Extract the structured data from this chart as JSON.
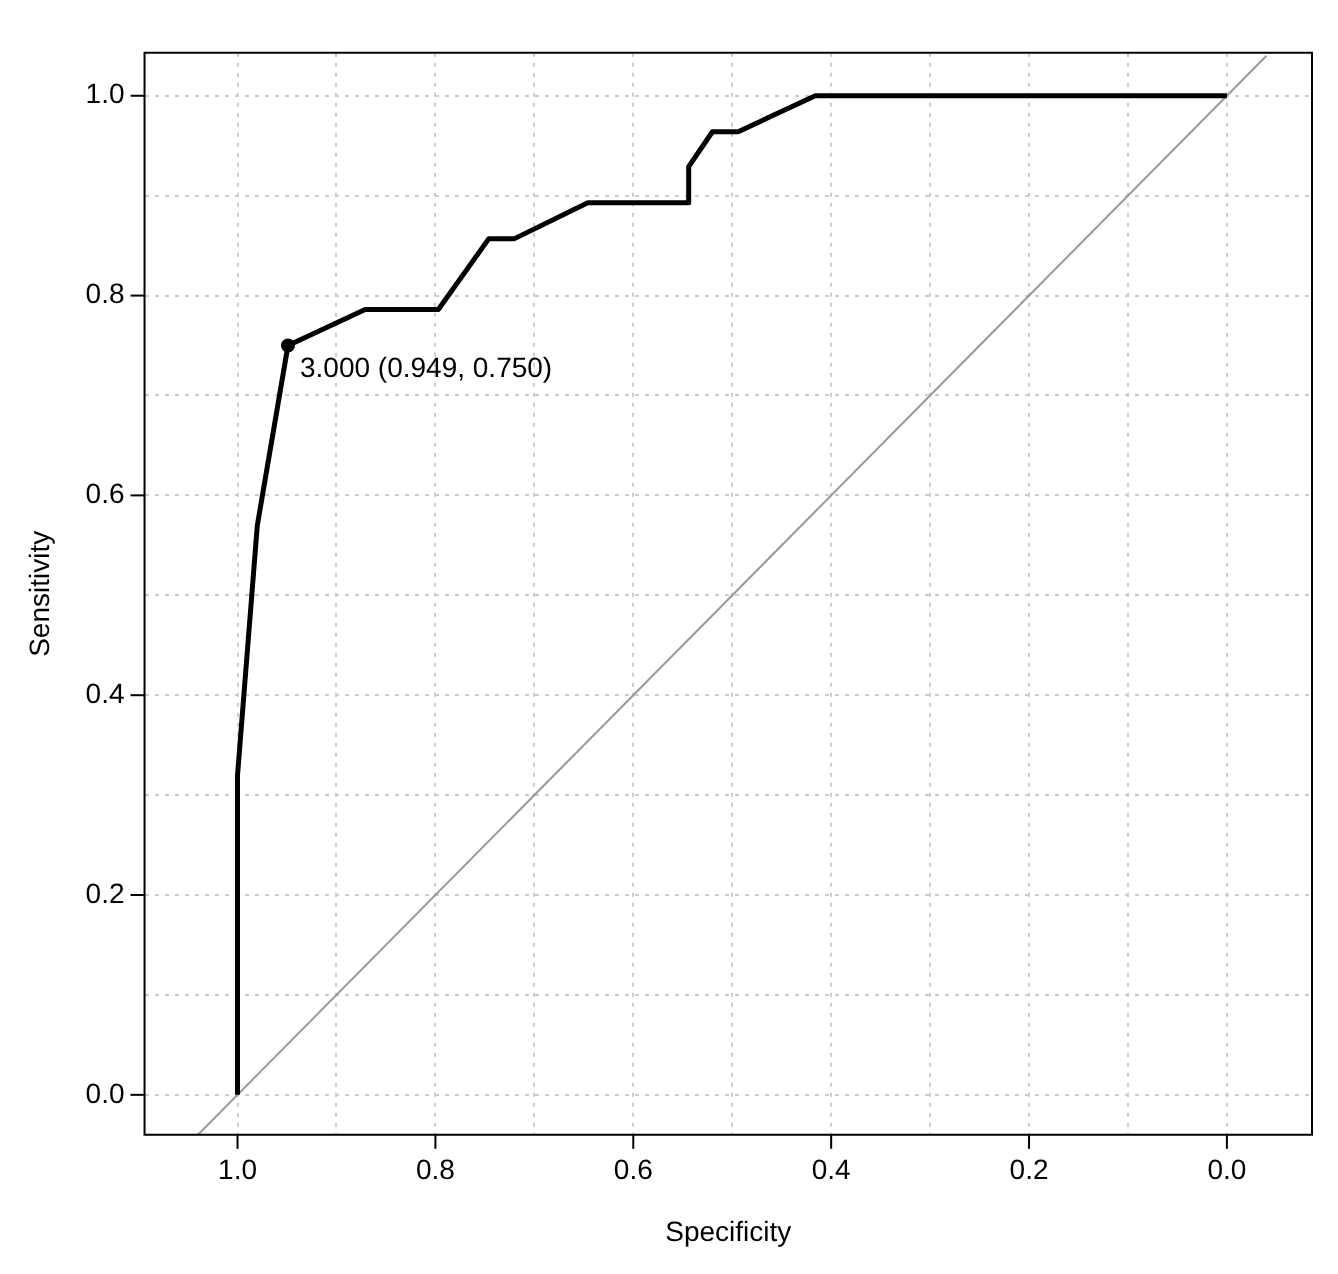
{
  "chart_data": {
    "type": "line",
    "xlabel": "Specificity",
    "ylabel": "Sensitivity",
    "xlim": [
      1.094,
      -0.086
    ],
    "ylim": [
      -0.04,
      1.043
    ],
    "xticks": [
      {
        "value": 1.0,
        "label": "1.0"
      },
      {
        "value": 0.9,
        "label": null
      },
      {
        "value": 0.8,
        "label": "0.8"
      },
      {
        "value": 0.7,
        "label": null
      },
      {
        "value": 0.6,
        "label": "0.6"
      },
      {
        "value": 0.5,
        "label": null
      },
      {
        "value": 0.4,
        "label": "0.4"
      },
      {
        "value": 0.3,
        "label": null
      },
      {
        "value": 0.2,
        "label": "0.2"
      },
      {
        "value": 0.1,
        "label": null
      },
      {
        "value": 0.0,
        "label": "0.0"
      }
    ],
    "yticks": [
      {
        "value": 0.0,
        "label": "0.0"
      },
      {
        "value": 0.1,
        "label": null
      },
      {
        "value": 0.2,
        "label": "0.2"
      },
      {
        "value": 0.3,
        "label": null
      },
      {
        "value": 0.4,
        "label": "0.4"
      },
      {
        "value": 0.5,
        "label": null
      },
      {
        "value": 0.6,
        "label": "0.6"
      },
      {
        "value": 0.7,
        "label": null
      },
      {
        "value": 0.8,
        "label": "0.8"
      },
      {
        "value": 0.9,
        "label": null
      },
      {
        "value": 1.0,
        "label": "1.0"
      }
    ],
    "grid": true,
    "legend": false,
    "marker": "none",
    "line_style": "solid",
    "series": [
      {
        "color": "#000000",
        "x": [
          1.0,
          1.0,
          0.98,
          0.949,
          0.871,
          0.797,
          0.746,
          0.72,
          0.646,
          0.544,
          0.544,
          0.52,
          0.494,
          0.416,
          0.0
        ],
        "values": [
          0.0,
          0.32,
          0.57,
          0.75,
          0.786,
          0.786,
          0.857,
          0.857,
          0.893,
          0.893,
          0.929,
          0.964,
          0.964,
          1.0,
          1.0
        ]
      },
      {
        "color": "#999999",
        "x": [
          1.04,
          -0.04
        ],
        "values": [
          -0.04,
          1.04
        ]
      },
      {
        "type": "scatter",
        "color": "#000000",
        "marker": "circle",
        "x": [
          0.949
        ],
        "values": [
          0.75
        ]
      }
    ],
    "annotations": [
      {
        "text": "3.000 (0.949, 0.750)",
        "x": 0.949,
        "y": 0.75
      }
    ]
  }
}
